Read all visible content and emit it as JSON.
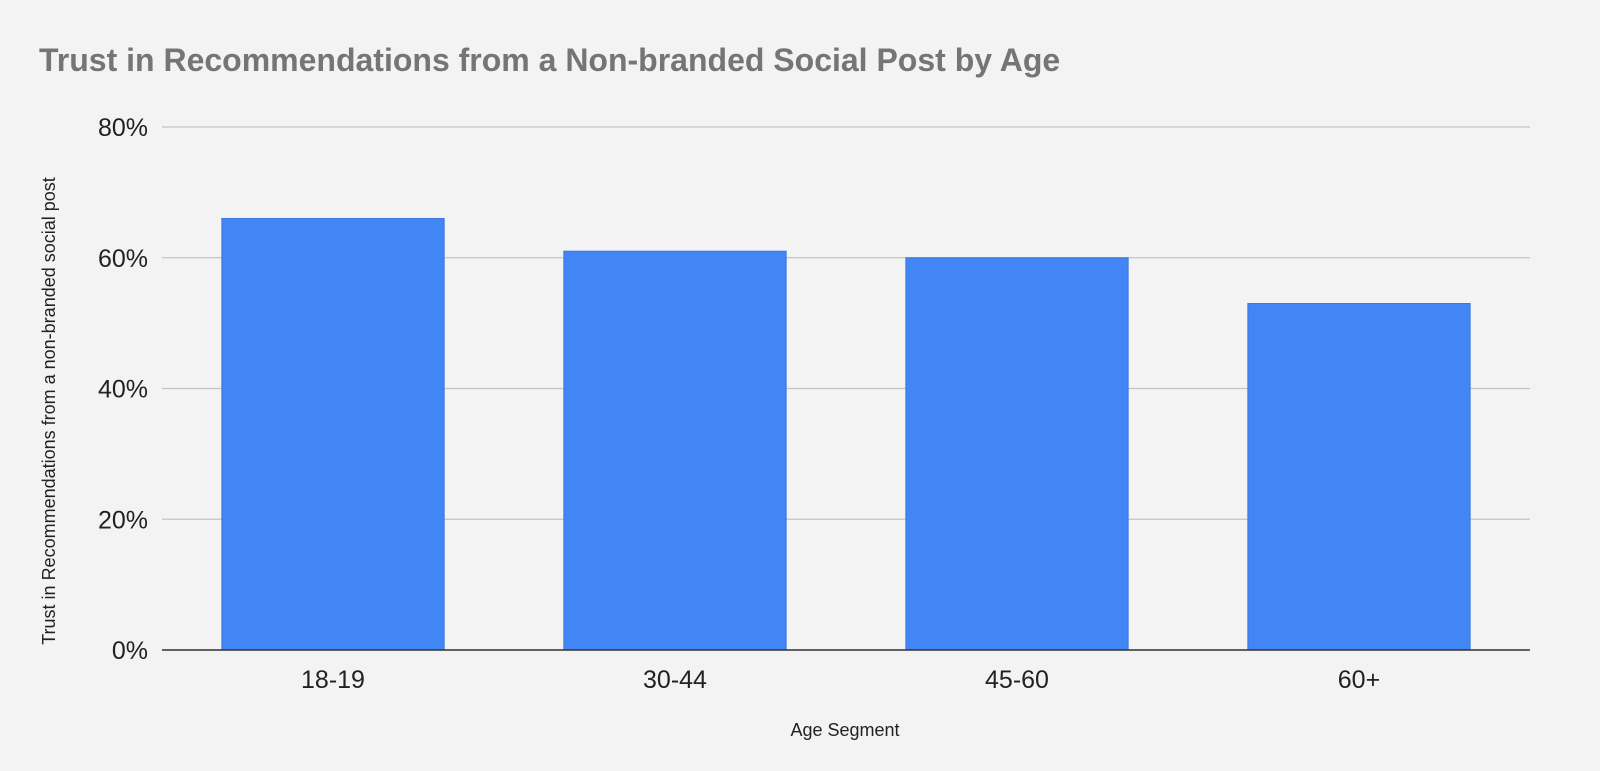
{
  "chart_data": {
    "type": "bar",
    "title": "Trust in Recommendations from a Non-branded Social Post by Age",
    "xlabel": "Age Segment",
    "ylabel": "Trust in Recommendations from a non-branded social post",
    "categories": [
      "18-19",
      "30-44",
      "45-60",
      "60+"
    ],
    "values": [
      66,
      61,
      60,
      53
    ],
    "value_unit": "%",
    "ylim": [
      0,
      80
    ],
    "yticks": [
      0,
      20,
      40,
      60,
      80
    ],
    "ytick_labels": [
      "0%",
      "20%",
      "40%",
      "60%",
      "80%"
    ],
    "grid": true,
    "legend": "none",
    "colors": {
      "bar": "#4285f4",
      "bar_stroke": "#3a78dc",
      "background": "#f3f3f3",
      "gridline": "#c4c4c4",
      "axis": "#333333",
      "title": "#757575",
      "text": "#222222"
    }
  }
}
